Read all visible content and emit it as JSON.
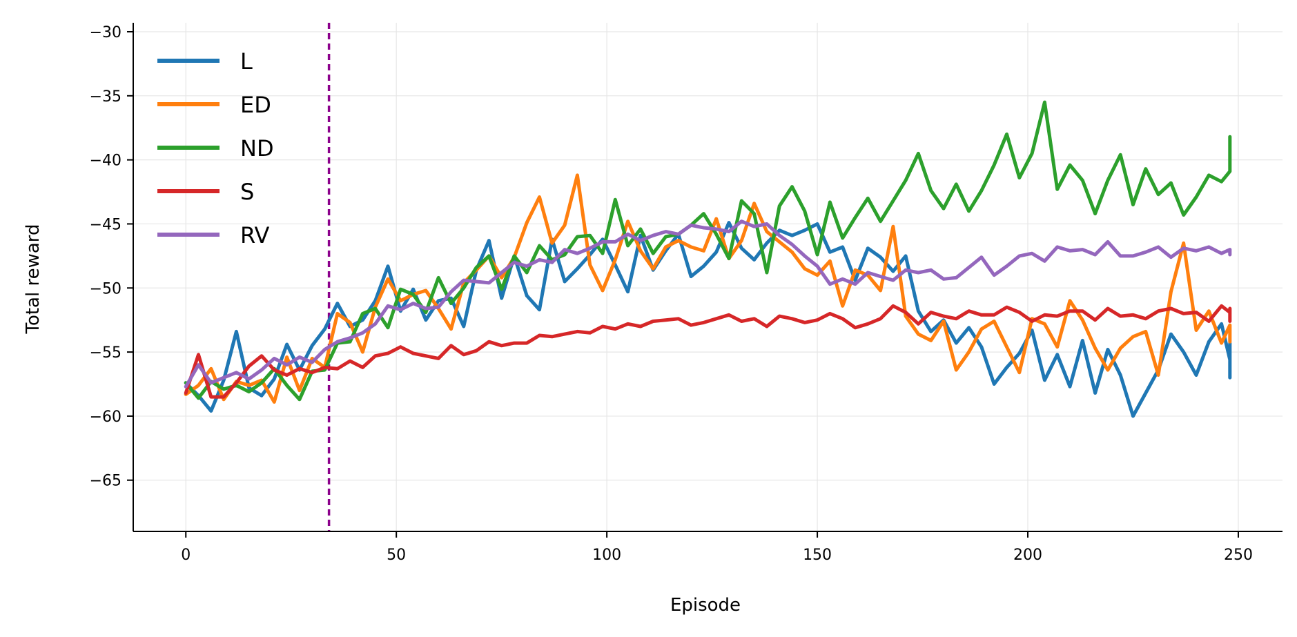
{
  "chart_data": {
    "type": "line",
    "title": "",
    "xlabel": "Episode",
    "ylabel": "Total reward",
    "xlim": [
      -12.5,
      260.5
    ],
    "ylim": [
      -69,
      -29.3
    ],
    "x_ticks": [
      0,
      50,
      100,
      150,
      200,
      250
    ],
    "y_ticks": [
      -30,
      -35,
      -40,
      -45,
      -50,
      -55,
      -60,
      -65
    ],
    "grid": true,
    "legend": "top-left",
    "vline": {
      "x": 34,
      "color": "#8b008b",
      "style": "dashed"
    },
    "x_start": 0,
    "x_step": 3,
    "series": [
      {
        "name": "L",
        "color": "#1f77b4",
        "values": [
          -57.4,
          -58.4,
          -59.6,
          -57.2,
          -53.4,
          -57.8,
          -58.4,
          -57.1,
          -54.4,
          -56.4,
          -54.5,
          -53.2,
          -51.2,
          -53.0,
          -52.5,
          -51.0,
          -48.3,
          -51.8,
          -50.1,
          -52.5,
          -51.0,
          -50.8,
          -53.0,
          -48.6,
          -46.3,
          -50.8,
          -47.5,
          -50.6,
          -51.7,
          -46.2,
          -49.5,
          -48.5,
          -47.4,
          -46.2,
          -48.2,
          -50.3,
          -45.9,
          -48.6,
          -47.1,
          -45.8,
          -49.1,
          -48.3,
          -47.2,
          -44.9,
          -46.9,
          -47.8,
          -46.5,
          -45.5,
          -45.9,
          -45.5,
          -45.0,
          -47.2,
          -46.8,
          -49.4,
          -46.9,
          -47.6,
          -48.7,
          -47.5,
          -51.8,
          -53.4,
          -52.5,
          -54.3,
          -53.1,
          -54.6,
          -57.5,
          -56.2,
          -55.1,
          -53.3,
          -57.2,
          -55.2,
          -57.7,
          -54.1,
          -58.2,
          -54.8,
          -56.8,
          -60.0,
          -58.2,
          -56.4,
          -53.6,
          -55.0,
          -56.8,
          -54.2,
          -52.8,
          -55.6,
          -54.3,
          -57.0
        ]
      },
      {
        "name": "ED",
        "color": "#ff7f0e",
        "values": [
          -58.3,
          -57.6,
          -56.3,
          -58.7,
          -57.3,
          -57.6,
          -57.2,
          -58.9,
          -55.4,
          -58.0,
          -55.5,
          -56.2,
          -52.0,
          -52.7,
          -55.0,
          -51.5,
          -49.3,
          -51.0,
          -50.5,
          -50.2,
          -51.6,
          -53.2,
          -49.6,
          -48.6,
          -47.5,
          -49.2,
          -47.6,
          -44.9,
          -42.9,
          -46.5,
          -45.1,
          -41.2,
          -48.2,
          -50.2,
          -47.8,
          -44.8,
          -47.1,
          -48.5,
          -46.8,
          -46.3,
          -46.8,
          -47.1,
          -44.6,
          -47.7,
          -46.3,
          -43.4,
          -45.6,
          -46.4,
          -47.2,
          -48.5,
          -49.0,
          -47.9,
          -51.4,
          -48.6,
          -49.0,
          -50.2,
          -45.2,
          -52.2,
          -53.6,
          -54.1,
          -52.6,
          -56.4,
          -55.0,
          -53.2,
          -52.6,
          -54.6,
          -56.6,
          -52.4,
          -52.8,
          -54.6,
          -51.0,
          -52.5,
          -54.7,
          -56.4,
          -54.7,
          -53.8,
          -53.4,
          -56.8,
          -50.3,
          -46.5,
          -53.3,
          -51.8,
          -54.3,
          -52.9,
          -54.2,
          -54.1
        ]
      },
      {
        "name": "ND",
        "color": "#2ca02c",
        "values": [
          -57.4,
          -58.6,
          -57.3,
          -57.9,
          -57.6,
          -58.1,
          -57.4,
          -56.3,
          -57.6,
          -58.7,
          -56.5,
          -56.4,
          -54.3,
          -54.2,
          -52.0,
          -51.6,
          -53.1,
          -50.1,
          -50.5,
          -51.9,
          -49.2,
          -51.2,
          -50.0,
          -48.4,
          -47.5,
          -50.1,
          -47.5,
          -48.8,
          -46.7,
          -47.8,
          -47.4,
          -46.0,
          -45.9,
          -47.3,
          -43.1,
          -46.7,
          -45.4,
          -47.3,
          -46.0,
          -45.8,
          -45.1,
          -44.2,
          -45.8,
          -47.7,
          -43.2,
          -44.2,
          -48.8,
          -43.6,
          -42.1,
          -44.0,
          -47.4,
          -43.3,
          -46.1,
          -44.5,
          -43.0,
          -44.8,
          -43.2,
          -41.6,
          -39.5,
          -42.4,
          -43.8,
          -41.9,
          -44.0,
          -42.4,
          -40.4,
          -38.0,
          -41.4,
          -39.5,
          -35.5,
          -42.3,
          -40.4,
          -41.6,
          -44.2,
          -41.6,
          -39.6,
          -43.5,
          -40.7,
          -42.7,
          -41.8,
          -44.3,
          -42.9,
          -41.2,
          -41.7,
          -40.9,
          -38.2,
          -40.1
        ]
      },
      {
        "name": "S",
        "color": "#d62728",
        "values": [
          -58.2,
          -55.2,
          -58.5,
          -58.5,
          -57.4,
          -56.1,
          -55.3,
          -56.4,
          -56.8,
          -56.3,
          -56.6,
          -56.2,
          -56.3,
          -55.7,
          -56.2,
          -55.3,
          -55.1,
          -54.6,
          -55.1,
          -55.3,
          -55.5,
          -54.5,
          -55.2,
          -54.9,
          -54.2,
          -54.5,
          -54.3,
          -54.3,
          -53.7,
          -53.8,
          -53.6,
          -53.4,
          -53.5,
          -53.0,
          -53.2,
          -52.8,
          -53.0,
          -52.6,
          -52.5,
          -52.4,
          -52.9,
          -52.7,
          -52.4,
          -52.1,
          -52.6,
          -52.4,
          -53.0,
          -52.2,
          -52.4,
          -52.7,
          -52.5,
          -52.0,
          -52.4,
          -53.1,
          -52.8,
          -52.4,
          -51.4,
          -51.9,
          -52.8,
          -51.9,
          -52.2,
          -52.4,
          -51.8,
          -52.1,
          -52.1,
          -51.5,
          -51.9,
          -52.6,
          -52.1,
          -52.2,
          -51.8,
          -51.8,
          -52.5,
          -51.6,
          -52.2,
          -52.1,
          -52.4,
          -51.8,
          -51.6,
          -52.0,
          -51.9,
          -52.6,
          -51.4,
          -51.9,
          -52.6,
          -51.6
        ]
      },
      {
        "name": "RV",
        "color": "#9467bd",
        "values": [
          -57.7,
          -56.0,
          -57.4,
          -57.0,
          -56.6,
          -57.1,
          -56.4,
          -55.5,
          -56.0,
          -55.4,
          -55.8,
          -54.8,
          -54.2,
          -53.9,
          -53.5,
          -52.8,
          -51.4,
          -51.7,
          -51.2,
          -51.6,
          -51.5,
          -50.3,
          -49.4,
          -49.5,
          -49.6,
          -48.8,
          -48.0,
          -48.3,
          -47.8,
          -48.0,
          -47.0,
          -47.3,
          -46.9,
          -46.4,
          -46.4,
          -45.8,
          -46.3,
          -45.9,
          -45.6,
          -45.8,
          -45.1,
          -45.3,
          -45.4,
          -45.6,
          -44.8,
          -45.2,
          -45.0,
          -45.9,
          -46.6,
          -47.5,
          -48.3,
          -49.7,
          -49.3,
          -49.7,
          -48.8,
          -49.1,
          -49.4,
          -48.6,
          -48.8,
          -48.6,
          -49.3,
          -49.2,
          -48.4,
          -47.6,
          -49.0,
          -48.3,
          -47.5,
          -47.3,
          -47.9,
          -46.8,
          -47.1,
          -47.0,
          -47.4,
          -46.4,
          -47.5,
          -47.5,
          -47.2,
          -46.8,
          -47.6,
          -46.9,
          -47.1,
          -46.8,
          -47.3,
          -47.0,
          -47.4,
          -47.1
        ]
      }
    ]
  }
}
